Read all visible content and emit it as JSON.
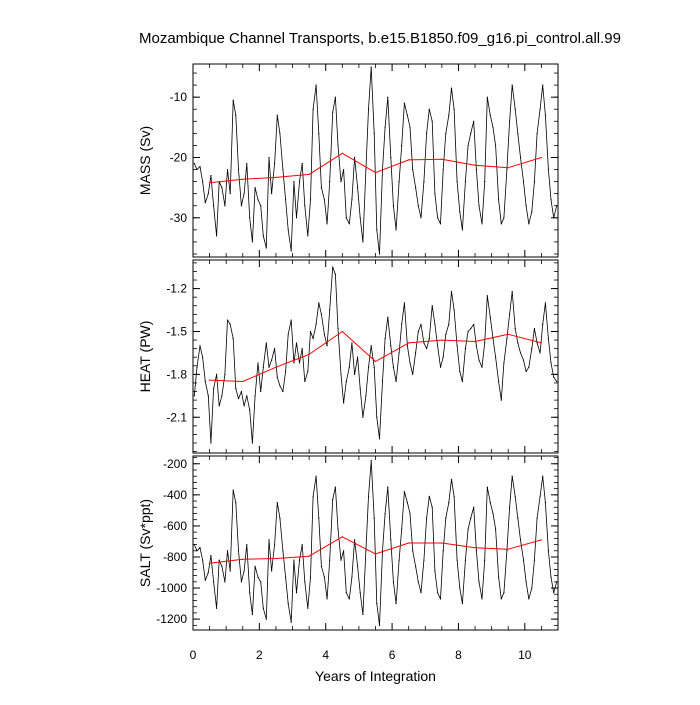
{
  "chart_data": {
    "type": "line",
    "title": "Mozambique Channel Transports, b.e15.B1850.f09_g16.pi_control.all.99",
    "xlabel": "Years of Integration",
    "xlim": [
      0,
      11
    ],
    "xticks": [
      0,
      2,
      4,
      6,
      8,
      10
    ],
    "xtick_labels": [
      "0",
      "2",
      "4",
      "6",
      "8",
      "10"
    ],
    "grid": false,
    "panels": [
      {
        "ylabel": "MASS (Sv)",
        "ylim": [
          -36.5,
          -4.5
        ],
        "yticks": [
          -30,
          -20,
          -10
        ],
        "ytick_labels": [
          "-30",
          "-20",
          "-10"
        ],
        "series": [
          {
            "color": "#000000",
            "style": "monthly",
            "x": [
              0.04,
              0.12,
              0.21,
              0.29,
              0.37,
              0.46,
              0.54,
              0.62,
              0.71,
              0.79,
              0.87,
              0.96,
              1.04,
              1.12,
              1.21,
              1.29,
              1.37,
              1.46,
              1.54,
              1.62,
              1.71,
              1.79,
              1.87,
              1.96,
              2.04,
              2.12,
              2.21,
              2.29,
              2.37,
              2.46,
              2.54,
              2.62,
              2.71,
              2.79,
              2.87,
              2.96,
              3.04,
              3.12,
              3.21,
              3.29,
              3.37,
              3.46,
              3.54,
              3.62,
              3.71,
              3.79,
              3.87,
              3.96,
              4.04,
              4.12,
              4.21,
              4.29,
              4.37,
              4.46,
              4.54,
              4.62,
              4.71,
              4.79,
              4.87,
              4.96,
              5.04,
              5.12,
              5.21,
              5.29,
              5.37,
              5.46,
              5.54,
              5.62,
              5.71,
              5.79,
              5.87,
              5.96,
              6.04,
              6.12,
              6.21,
              6.29,
              6.37,
              6.46,
              6.54,
              6.62,
              6.71,
              6.79,
              6.87,
              6.96,
              7.04,
              7.12,
              7.21,
              7.29,
              7.37,
              7.46,
              7.54,
              7.62,
              7.71,
              7.79,
              7.87,
              7.96,
              8.04,
              8.12,
              8.21,
              8.29,
              8.37,
              8.46,
              8.54,
              8.62,
              8.71,
              8.79,
              8.87,
              8.96,
              9.04,
              9.12,
              9.21,
              9.29,
              9.37,
              9.46,
              9.54,
              9.62,
              9.71,
              9.79,
              9.87,
              9.96,
              10.04,
              10.12,
              10.21,
              10.29,
              10.37,
              10.46,
              10.54,
              10.62,
              10.71,
              10.79,
              10.87,
              10.96
            ],
            "y": [
              -21,
              -22,
              -21.5,
              -24,
              -27.5,
              -26,
              -23,
              -28,
              -33,
              -24,
              -25,
              -28,
              -22,
              -26,
              -10.5,
              -13,
              -22,
              -28,
              -26,
              -21,
              -30,
              -34,
              -25,
              -27,
              -28,
              -33,
              -35,
              -20,
              -26,
              -21,
              -13,
              -16,
              -22,
              -27,
              -32,
              -35.5,
              -24,
              -30,
              -24,
              -21,
              -28,
              -33,
              -27,
              -12,
              -8,
              -16,
              -25,
              -27,
              -31,
              -24,
              -12.5,
              -10,
              -18,
              -24,
              -22,
              -30,
              -31,
              -27,
              -20,
              -25,
              -30,
              -34,
              -22,
              -12,
              -5,
              -16,
              -32,
              -36,
              -22,
              -15,
              -10,
              -20,
              -28,
              -32,
              -24,
              -18,
              -11,
              -13,
              -15,
              -22,
              -25,
              -28,
              -30,
              -24,
              -16,
              -12,
              -14,
              -26,
              -30,
              -31,
              -22,
              -16,
              -13,
              -8.5,
              -12,
              -24,
              -29,
              -32,
              -24,
              -18,
              -16,
              -14,
              -22,
              -28,
              -31,
              -24,
              -10,
              -13,
              -15,
              -18,
              -27,
              -31,
              -30,
              -22,
              -14,
              -8,
              -12,
              -16,
              -20,
              -24,
              -28,
              -31,
              -29,
              -24,
              -16,
              -12,
              -8,
              -13,
              -22,
              -27,
              -30,
              -28
            ]
          },
          {
            "color": "#ff0000",
            "style": "annual",
            "x": [
              0.5,
              1.5,
              2.5,
              3.5,
              4.5,
              5.5,
              6.5,
              7.5,
              8.5,
              9.5,
              10.5
            ],
            "y": [
              -24.2,
              -23.6,
              -23.3,
              -22.8,
              -19.3,
              -22.5,
              -20.4,
              -20.3,
              -21.3,
              -21.7,
              -20
            ]
          }
        ]
      },
      {
        "ylabel": "HEAT (PW)",
        "ylim": [
          -2.35,
          -1.0
        ],
        "yticks": [
          -2.1,
          -1.8,
          -1.5,
          -1.2
        ],
        "ytick_labels": [
          "-2.1",
          "-1.8",
          "-1.5",
          "-1.2"
        ],
        "series": [
          {
            "color": "#000000",
            "style": "monthly",
            "x": [
              0.04,
              0.12,
              0.21,
              0.29,
              0.37,
              0.46,
              0.54,
              0.62,
              0.71,
              0.79,
              0.87,
              0.96,
              1.04,
              1.12,
              1.21,
              1.29,
              1.37,
              1.46,
              1.54,
              1.62,
              1.71,
              1.79,
              1.87,
              1.96,
              2.04,
              2.12,
              2.21,
              2.29,
              2.37,
              2.46,
              2.54,
              2.62,
              2.71,
              2.79,
              2.87,
              2.96,
              3.04,
              3.12,
              3.21,
              3.29,
              3.37,
              3.46,
              3.54,
              3.62,
              3.71,
              3.79,
              3.87,
              3.96,
              4.04,
              4.12,
              4.21,
              4.29,
              4.37,
              4.46,
              4.54,
              4.62,
              4.71,
              4.79,
              4.87,
              4.96,
              5.04,
              5.12,
              5.21,
              5.29,
              5.37,
              5.46,
              5.54,
              5.62,
              5.71,
              5.79,
              5.87,
              5.96,
              6.04,
              6.12,
              6.21,
              6.29,
              6.37,
              6.46,
              6.54,
              6.62,
              6.71,
              6.79,
              6.87,
              6.96,
              7.04,
              7.12,
              7.21,
              7.29,
              7.37,
              7.46,
              7.54,
              7.62,
              7.71,
              7.79,
              7.87,
              7.96,
              8.04,
              8.12,
              8.21,
              8.29,
              8.37,
              8.46,
              8.54,
              8.62,
              8.71,
              8.79,
              8.87,
              8.96,
              9.04,
              9.12,
              9.21,
              9.29,
              9.37,
              9.46,
              9.54,
              9.62,
              9.71,
              9.79,
              9.87,
              9.96,
              10.04,
              10.12,
              10.21,
              10.29,
              10.37,
              10.46,
              10.54,
              10.62,
              10.71,
              10.79,
              10.87,
              10.96
            ],
            "y": [
              -1.95,
              -1.75,
              -1.6,
              -1.68,
              -1.85,
              -1.95,
              -2.28,
              -1.9,
              -1.8,
              -2.02,
              -1.95,
              -1.8,
              -1.42,
              -1.45,
              -1.55,
              -1.9,
              -1.97,
              -1.92,
              -2.02,
              -1.95,
              -2.05,
              -2.28,
              -1.95,
              -1.72,
              -1.92,
              -1.75,
              -1.58,
              -1.75,
              -1.7,
              -1.62,
              -1.82,
              -1.88,
              -1.92,
              -1.78,
              -1.52,
              -1.42,
              -1.72,
              -1.58,
              -1.72,
              -1.62,
              -1.85,
              -1.78,
              -1.5,
              -1.55,
              -1.45,
              -1.3,
              -1.38,
              -1.52,
              -1.6,
              -1.35,
              -1.05,
              -1.1,
              -1.48,
              -1.8,
              -2.0,
              -1.85,
              -1.75,
              -1.58,
              -1.8,
              -1.68,
              -1.9,
              -2.1,
              -1.95,
              -1.75,
              -1.6,
              -1.75,
              -2.1,
              -2.25,
              -1.85,
              -1.55,
              -1.4,
              -1.6,
              -1.75,
              -1.85,
              -1.65,
              -1.45,
              -1.3,
              -1.6,
              -1.72,
              -1.8,
              -1.65,
              -1.5,
              -1.45,
              -1.58,
              -1.62,
              -1.55,
              -1.32,
              -1.45,
              -1.6,
              -1.75,
              -1.68,
              -1.52,
              -1.45,
              -1.22,
              -1.35,
              -1.6,
              -1.78,
              -1.85,
              -1.62,
              -1.5,
              -1.48,
              -1.45,
              -1.6,
              -1.7,
              -1.75,
              -1.58,
              -1.25,
              -1.4,
              -1.55,
              -1.68,
              -1.85,
              -1.98,
              -1.72,
              -1.55,
              -1.38,
              -1.22,
              -1.48,
              -1.58,
              -1.65,
              -1.7,
              -1.78,
              -1.75,
              -1.62,
              -1.48,
              -1.58,
              -1.65,
              -1.45,
              -1.3,
              -1.55,
              -1.72,
              -1.82,
              -1.85
            ]
          },
          {
            "color": "#ff0000",
            "style": "annual",
            "x": [
              0.5,
              1.5,
              2.5,
              3.5,
              4.5,
              5.5,
              6.5,
              7.5,
              8.5,
              9.5,
              10.5
            ],
            "y": [
              -1.84,
              -1.85,
              -1.75,
              -1.66,
              -1.5,
              -1.71,
              -1.58,
              -1.56,
              -1.57,
              -1.52,
              -1.58
            ]
          }
        ]
      },
      {
        "ylabel": "SALT (Sv*ppt)",
        "ylim": [
          -1270,
          -150
        ],
        "yticks": [
          -1200,
          -1000,
          -800,
          -600,
          -400,
          -200
        ],
        "ytick_labels": [
          "-1200",
          "-1000",
          "-800",
          "-600",
          "-400",
          "-200"
        ],
        "series": [
          {
            "color": "#000000",
            "style": "monthly",
            "x": [
              0.04,
              0.12,
              0.21,
              0.29,
              0.37,
              0.46,
              0.54,
              0.62,
              0.71,
              0.79,
              0.87,
              0.96,
              1.04,
              1.12,
              1.21,
              1.29,
              1.37,
              1.46,
              1.54,
              1.62,
              1.71,
              1.79,
              1.87,
              1.96,
              2.04,
              2.12,
              2.21,
              2.29,
              2.37,
              2.46,
              2.54,
              2.62,
              2.71,
              2.79,
              2.87,
              2.96,
              3.04,
              3.12,
              3.21,
              3.29,
              3.37,
              3.46,
              3.54,
              3.62,
              3.71,
              3.79,
              3.87,
              3.96,
              4.04,
              4.12,
              4.21,
              4.29,
              4.37,
              4.46,
              4.54,
              4.62,
              4.71,
              4.79,
              4.87,
              4.96,
              5.04,
              5.12,
              5.21,
              5.29,
              5.37,
              5.46,
              5.54,
              5.62,
              5.71,
              5.79,
              5.87,
              5.96,
              6.04,
              6.12,
              6.21,
              6.29,
              6.37,
              6.46,
              6.54,
              6.62,
              6.71,
              6.79,
              6.87,
              6.96,
              7.04,
              7.12,
              7.21,
              7.29,
              7.37,
              7.46,
              7.54,
              7.62,
              7.71,
              7.79,
              7.87,
              7.96,
              8.04,
              8.12,
              8.21,
              8.29,
              8.37,
              8.46,
              8.54,
              8.62,
              8.71,
              8.79,
              8.87,
              8.96,
              9.04,
              9.12,
              9.21,
              9.29,
              9.37,
              9.46,
              9.54,
              9.62,
              9.71,
              9.79,
              9.87,
              9.96,
              10.04,
              10.12,
              10.21,
              10.29,
              10.37,
              10.46,
              10.54,
              10.62,
              10.71,
              10.79,
              10.87,
              10.96
            ],
            "y": [
              -720,
              -760,
              -740,
              -820,
              -950,
              -900,
              -790,
              -960,
              -1130,
              -820,
              -860,
              -960,
              -760,
              -890,
              -370,
              -450,
              -760,
              -960,
              -890,
              -720,
              -1030,
              -1170,
              -860,
              -930,
              -960,
              -1130,
              -1200,
              -690,
              -890,
              -720,
              -450,
              -550,
              -760,
              -930,
              -1100,
              -1220,
              -820,
              -1030,
              -820,
              -720,
              -960,
              -1130,
              -930,
              -410,
              -280,
              -550,
              -860,
              -930,
              -1070,
              -820,
              -430,
              -350,
              -620,
              -820,
              -760,
              -1030,
              -1070,
              -930,
              -690,
              -860,
              -1030,
              -1170,
              -760,
              -410,
              -180,
              -550,
              -1100,
              -1240,
              -760,
              -520,
              -350,
              -690,
              -960,
              -1100,
              -820,
              -620,
              -380,
              -450,
              -520,
              -760,
              -860,
              -960,
              -1030,
              -820,
              -550,
              -410,
              -480,
              -890,
              -1030,
              -1070,
              -760,
              -550,
              -450,
              -300,
              -410,
              -820,
              -1000,
              -1100,
              -820,
              -620,
              -550,
              -480,
              -760,
              -960,
              -1070,
              -820,
              -350,
              -450,
              -520,
              -620,
              -930,
              -1070,
              -1030,
              -760,
              -480,
              -280,
              -410,
              -550,
              -690,
              -820,
              -960,
              -1070,
              -1000,
              -820,
              -550,
              -410,
              -280,
              -450,
              -760,
              -930,
              -1030,
              -960
            ]
          },
          {
            "color": "#ff0000",
            "style": "annual",
            "x": [
              0.5,
              1.5,
              2.5,
              3.5,
              4.5,
              5.5,
              6.5,
              7.5,
              8.5,
              9.5,
              10.5
            ],
            "y": [
              -840,
              -815,
              -810,
              -795,
              -670,
              -780,
              -710,
              -710,
              -740,
              -750,
              -690
            ]
          }
        ]
      }
    ]
  }
}
